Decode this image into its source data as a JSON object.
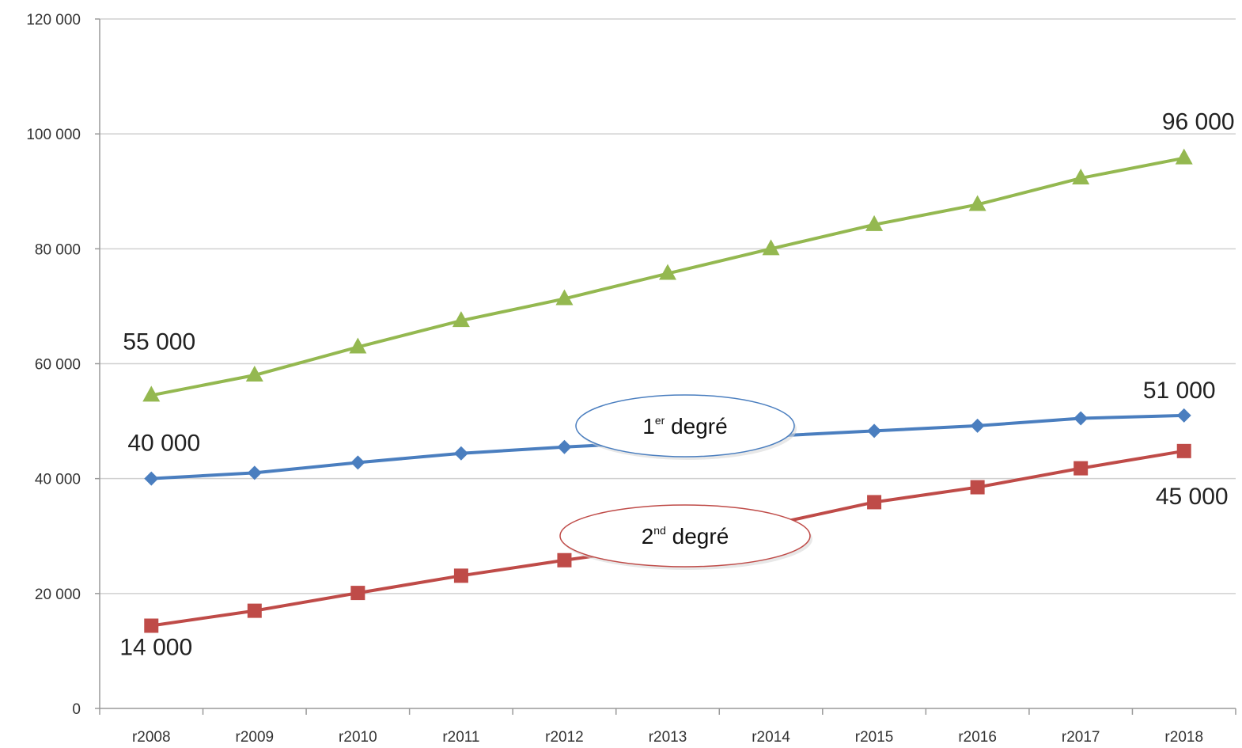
{
  "chart_data": {
    "type": "line",
    "title": "",
    "xlabel": "",
    "ylabel": "",
    "categories": [
      "r2008",
      "r2009",
      "r2010",
      "r2011",
      "r2012",
      "r2013",
      "r2014",
      "r2015",
      "r2016",
      "r2017",
      "r2018"
    ],
    "ylim": [
      0,
      120000
    ],
    "yticks": [
      0,
      20000,
      40000,
      60000,
      80000,
      100000,
      120000
    ],
    "ytick_labels": [
      "0",
      "20 000",
      "40 000",
      "60 000",
      "80 000",
      "100 000",
      "120 000"
    ],
    "grid": "horizontal",
    "legend": "none",
    "series": [
      {
        "key": "premier",
        "color": "#4a7ebf",
        "marker": "diamond",
        "values": [
          40000,
          41000,
          42800,
          44400,
          45500,
          46400,
          47400,
          48300,
          49200,
          50500,
          51000
        ]
      },
      {
        "key": "second",
        "color": "#bf4b48",
        "marker": "square",
        "values": [
          14400,
          17000,
          20100,
          23100,
          25800,
          28300,
          32000,
          35900,
          38500,
          41800,
          44800
        ]
      },
      {
        "key": "total",
        "color": "#94b850",
        "marker": "triangle",
        "values": [
          54500,
          58000,
          62900,
          67500,
          71300,
          75700,
          80000,
          84200,
          87700,
          92300,
          95800
        ]
      }
    ],
    "annotations": [
      {
        "text": "55 000",
        "series": "total",
        "index": 0
      },
      {
        "text": "96 000",
        "series": "total",
        "index": 10
      },
      {
        "text": "40 000",
        "series": "premier",
        "index": 0
      },
      {
        "text": "51 000",
        "series": "premier",
        "index": 10
      },
      {
        "text": "14 000",
        "series": "second",
        "index": 0
      },
      {
        "text": "45 000",
        "series": "second",
        "index": 10
      }
    ],
    "callouts": [
      {
        "series": "premier",
        "main": "1",
        "sup": "er",
        "rest": " degré",
        "border": "#4a7ebf"
      },
      {
        "series": "second",
        "main": "2",
        "sup": "nd",
        "rest": " degré",
        "border": "#bf4b48"
      }
    ]
  }
}
